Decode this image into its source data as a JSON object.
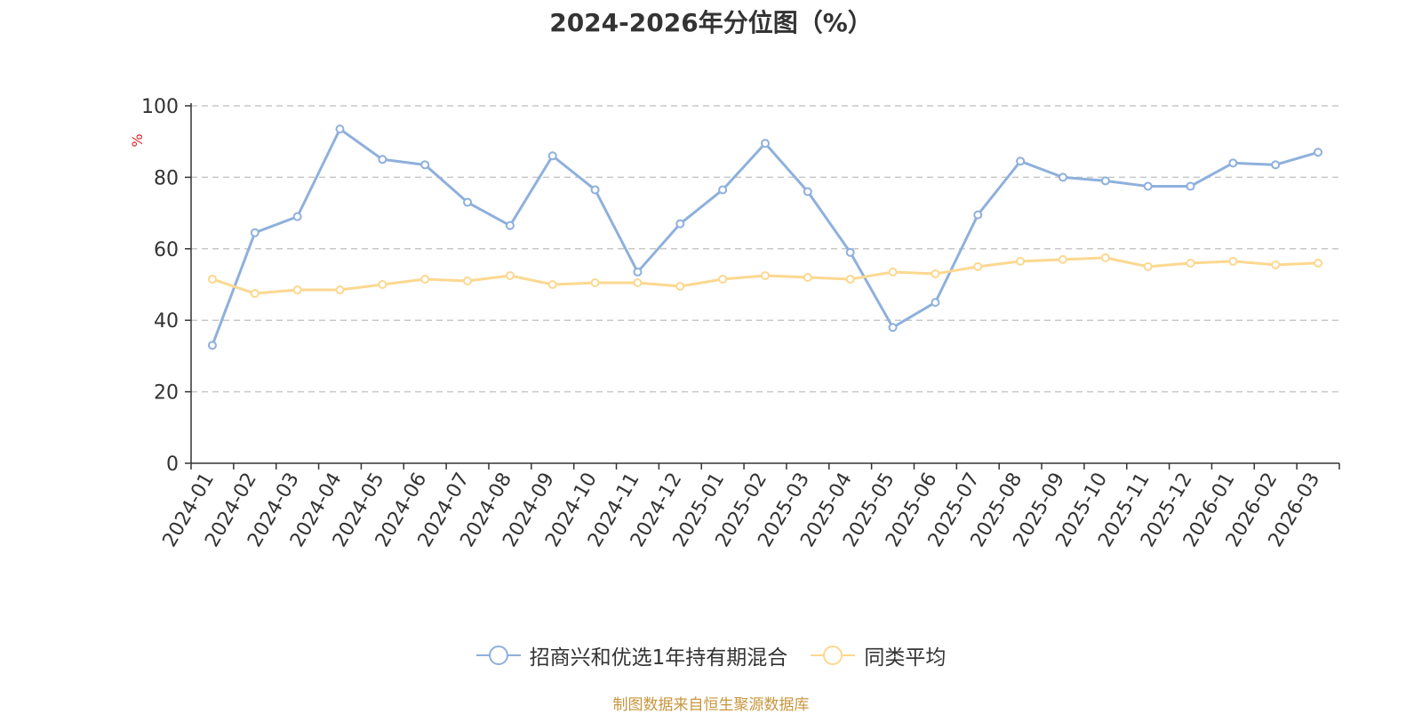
{
  "chart_data": {
    "type": "line",
    "title": "2024-2026年分位图（%）",
    "ylabel": "%",
    "xlabel": "",
    "ylim": [
      0,
      100
    ],
    "yticks": [
      0,
      20,
      40,
      60,
      80,
      100
    ],
    "grid": true,
    "legend_position": "bottom",
    "categories": [
      "2024-01",
      "2024-02",
      "2024-03",
      "2024-04",
      "2024-05",
      "2024-06",
      "2024-07",
      "2024-08",
      "2024-09",
      "2024-10",
      "2024-11",
      "2024-12",
      "2025-01",
      "2025-02",
      "2025-03",
      "2025-04",
      "2025-05",
      "2025-06",
      "2025-07",
      "2025-08",
      "2025-09",
      "2025-10",
      "2025-11",
      "2025-12",
      "2026-01",
      "2026-02",
      "2026-03"
    ],
    "series": [
      {
        "name": "招商兴和优选1年持有期混合",
        "color": "#8eb0dc",
        "values": [
          33,
          64.5,
          69,
          93.5,
          85,
          83.5,
          73,
          66.5,
          86,
          76.5,
          53.5,
          67,
          76.5,
          89.5,
          76,
          59,
          38,
          45,
          69.5,
          84.5,
          80,
          79,
          77.5,
          77.5,
          84,
          83.5,
          87
        ]
      },
      {
        "name": "同类平均",
        "color": "#fcd890",
        "values": [
          51.5,
          47.5,
          48.5,
          48.5,
          50,
          51.5,
          51,
          52.5,
          50,
          50.5,
          50.5,
          49.5,
          51.5,
          52.5,
          52,
          51.5,
          53.5,
          53,
          55,
          56.5,
          57,
          57.5,
          55,
          56,
          56.5,
          55.5,
          56
        ]
      }
    ]
  },
  "source_note": "制图数据来自恒生聚源数据库"
}
